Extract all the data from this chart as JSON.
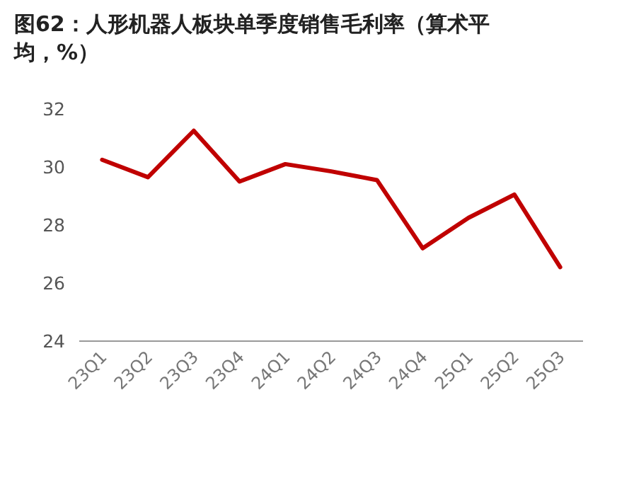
{
  "chart_data": {
    "type": "line",
    "title": "图62：人形机器人板块单季度销售毛利率（算术平均，%）",
    "categories": [
      "23Q1",
      "23Q2",
      "23Q3",
      "23Q4",
      "24Q1",
      "24Q2",
      "24Q3",
      "24Q4",
      "25Q1",
      "25Q2",
      "25Q3"
    ],
    "series": [
      {
        "color": "#c00000",
        "values": [
          30.25,
          29.65,
          31.25,
          29.5,
          30.1,
          29.85,
          29.55,
          27.2,
          28.25,
          29.05,
          26.55
        ]
      }
    ],
    "ylim": [
      24,
      32
    ],
    "yticks": [
      24,
      26,
      28,
      30,
      32
    ],
    "grid": false,
    "marker": "none",
    "line_style": "solid"
  }
}
